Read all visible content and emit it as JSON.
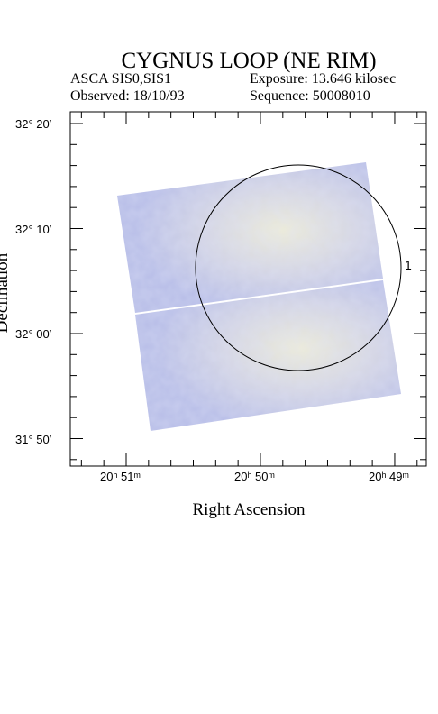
{
  "header": {
    "title": "CYGNUS LOOP (NE RIM)",
    "instrument": "ASCA SIS0,SIS1",
    "exposure": "Exposure: 13.646 kilosec",
    "observed": "Observed: 18/10/93",
    "sequence": "Sequence: 50008010"
  },
  "axes": {
    "xlabel": "Right Ascension",
    "ylabel": "Declination",
    "x_ticks": [
      {
        "text": "20ʰ 51ᵐ"
      },
      {
        "text": "20ʰ 50ᵐ"
      },
      {
        "text": "20ʰ 49ᵐ"
      }
    ],
    "y_ticks": [
      {
        "text": "32° 20′"
      },
      {
        "text": "32° 10′"
      },
      {
        "text": "32° 00′"
      },
      {
        "text": "31° 50′"
      }
    ]
  },
  "region": {
    "label": "1"
  },
  "colors": {
    "image_tint": "#b8bfe6",
    "image_bright": "#e6e7d6",
    "frame": "#000000"
  }
}
